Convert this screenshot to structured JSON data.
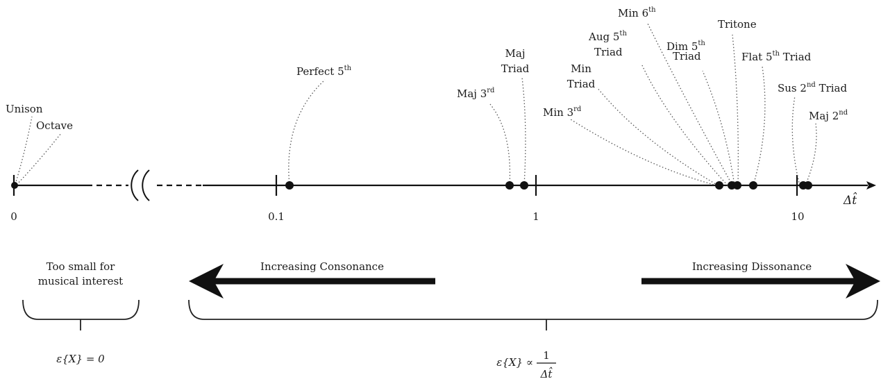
{
  "axis": {
    "ticks": [
      {
        "label": "0"
      },
      {
        "label": "0.1"
      },
      {
        "label": "1"
      },
      {
        "label": "10"
      }
    ],
    "variable_label": "Δt̂"
  },
  "intervals": [
    {
      "name": "Unison",
      "sup": "",
      "suffix": ""
    },
    {
      "name": "Octave",
      "sup": "",
      "suffix": ""
    },
    {
      "name": "Perfect  5",
      "sup": "th",
      "suffix": ""
    },
    {
      "name": "Maj 3",
      "sup": "rd",
      "suffix": ""
    },
    {
      "name": "Maj",
      "line2": "Triad",
      "sup": "",
      "suffix": ""
    },
    {
      "name": "Min 3",
      "sup": "rd",
      "suffix": ""
    },
    {
      "name": "Min",
      "line2": "Triad",
      "sup": "",
      "suffix": ""
    },
    {
      "name": "Aug 5",
      "sup": "th",
      "line2": "Triad",
      "suffix": ""
    },
    {
      "name": "Min 6",
      "sup": "th",
      "suffix": ""
    },
    {
      "name": "Dim  5",
      "sup": "th",
      "line2": "Triad",
      "suffix": ""
    },
    {
      "name": "Tritone",
      "sup": "",
      "suffix": ""
    },
    {
      "name": "Flat 5",
      "sup": "th",
      "suffix": " Triad"
    },
    {
      "name": "Sus 2",
      "sup": "nd",
      "suffix": " Triad"
    },
    {
      "name": "Maj 2",
      "sup": "nd",
      "suffix": ""
    }
  ],
  "left_region": {
    "text_line1": "Too small for",
    "text_line2": "musical interest",
    "formula": "ε{X} = 0"
  },
  "right_region": {
    "consonance_label": "Increasing Consonance",
    "dissonance_label": "Increasing Dissonance",
    "formula_left": "ε{X} ∝",
    "formula_num": "1",
    "formula_den": "Δt̂"
  }
}
